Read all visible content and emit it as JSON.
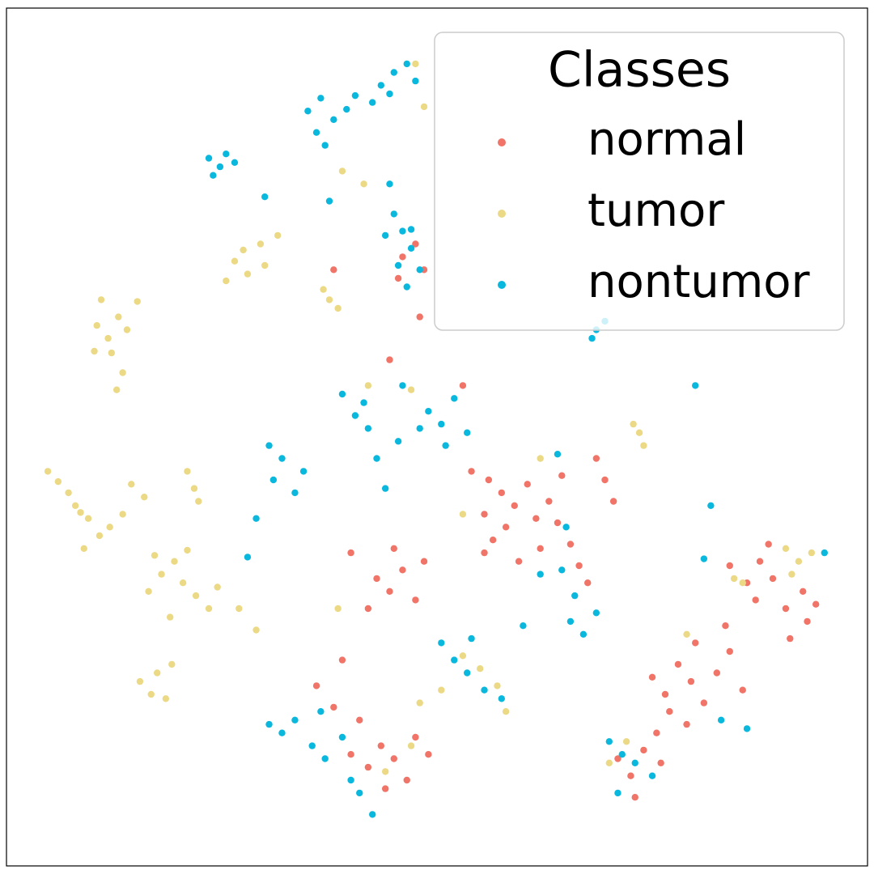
{
  "chart_data": {
    "type": "scatter",
    "xlim": [
      0,
      100
    ],
    "ylim": [
      0,
      100
    ],
    "legend_title": "Classes",
    "legend_position": "upper right",
    "series": [
      {
        "name": "normal",
        "color": "#f07468",
        "x": [
          54,
          56,
          57.5,
          55.5,
          59,
          60.5,
          58,
          61.5,
          63,
          62,
          59.5,
          56.5,
          64,
          65.5,
          66.5,
          67.5,
          69.5,
          70.5,
          68.5,
          64.5,
          43,
          44.5,
          46,
          47.5,
          42,
          40,
          45,
          48.5,
          40,
          42,
          43.5,
          45,
          46.5,
          44,
          47.5,
          41,
          49,
          38,
          36,
          39,
          75,
          76.5,
          78,
          79.5,
          81,
          82.5,
          84,
          77,
          79,
          85.5,
          83.5,
          80,
          84,
          86,
          87.5,
          88.5,
          89,
          87,
          90.5,
          92.5,
          93,
          91,
          94,
          71,
          72.5,
          74,
          75.5,
          73,
          76,
          46,
          47.5,
          48.5,
          45.5,
          38,
          44.5,
          53,
          48,
          55.5
        ],
        "y": [
          46,
          45,
          43.5,
          41,
          42,
          44.5,
          39.5,
          40.5,
          42.5,
          37,
          35.5,
          38,
          40,
          37.5,
          35,
          33,
          45,
          42.5,
          47.5,
          45.5,
          33.5,
          32,
          34.5,
          31,
          30,
          36.5,
          37,
          35.5,
          13,
          11.5,
          14,
          12.5,
          10,
          9,
          15,
          17,
          13,
          18.5,
          21,
          24,
          22,
          20,
          23.5,
          21.5,
          19,
          22.5,
          25,
          18,
          16.5,
          20.5,
          28,
          26,
          35,
          33,
          35.5,
          37.5,
          33.5,
          31,
          30,
          32,
          28.5,
          26.5,
          30.5,
          12.5,
          10.5,
          13.5,
          15.5,
          8,
          12,
          71,
          72.5,
          69.5,
          68.5,
          69.5,
          59,
          56,
          64,
          36.5
        ]
      },
      {
        "name": "tumor",
        "color": "#ecd985",
        "x": [
          10.5,
          11.8,
          13,
          12.2,
          14,
          11,
          13.5,
          12.8,
          15.2,
          10.2,
          8,
          9.5,
          7.2,
          6,
          10.8,
          9,
          12,
          13.5,
          4.8,
          8.6,
          18,
          19.5,
          20.5,
          17.2,
          22,
          21,
          16.5,
          23.5,
          19,
          24.5,
          15.5,
          16.8,
          17.5,
          18.5,
          19.2,
          26.5,
          28,
          27.5,
          29.5,
          31.5,
          25.5,
          30,
          37.5,
          38.5,
          36.8,
          21,
          21.8,
          22.3,
          14.5,
          16,
          73.5,
          74,
          72.8,
          92,
          93.5,
          91.2,
          90.5,
          27,
          29,
          38.5,
          48,
          50.5,
          53,
          57,
          58,
          55,
          44,
          47,
          70,
          72,
          79,
          84.5,
          85.5,
          42,
          47,
          53,
          62,
          47.5,
          48.5,
          39,
          41.5
        ],
        "y": [
          63,
          61.5,
          64,
          59.8,
          62.5,
          66,
          57.5,
          55.5,
          65.8,
          60,
          42,
          40.5,
          43.5,
          44.8,
          38.5,
          37,
          39.5,
          41,
          46,
          41.2,
          34,
          35.5,
          33,
          36.2,
          31.5,
          36.8,
          32,
          30,
          29,
          32.5,
          21.5,
          20,
          22.5,
          19.5,
          23.5,
          70.5,
          69,
          71.8,
          72.5,
          73.5,
          68.2,
          70,
          66,
          65,
          67.2,
          46,
          44,
          42.5,
          44.5,
          43,
          50.5,
          49,
          51.5,
          35.5,
          36.5,
          34,
          37,
          30,
          27.5,
          30,
          19,
          20.5,
          24.5,
          21,
          18,
          23,
          11,
          14,
          12,
          14.5,
          27,
          33.5,
          33,
          56,
          55.5,
          41,
          47.5,
          93.5,
          88.5,
          81,
          79.5
        ]
      },
      {
        "name": "nontumor",
        "color": "#0ab8de",
        "x": [
          23.5,
          24.8,
          25.5,
          24,
          26.5,
          35,
          36.5,
          38,
          36,
          39.5,
          40.5,
          43.5,
          45,
          46.5,
          44.5,
          47.5,
          42.5,
          45,
          46,
          47,
          45.5,
          48,
          46.5,
          44,
          37.5,
          44.5,
          39,
          40.5,
          41.5,
          42,
          45.5,
          43,
          49,
          50.5,
          52,
          51,
          48,
          46,
          53.5,
          44,
          30.5,
          32,
          31,
          33.5,
          29,
          34.5,
          28,
          30.5,
          32,
          33.5,
          35.5,
          37,
          39,
          36.5,
          41,
          40,
          42.5,
          50.5,
          52,
          53.5,
          55.5,
          57.5,
          54,
          65.5,
          67,
          68.5,
          66,
          62,
          64.5,
          70,
          71.5,
          73,
          71,
          75,
          68.5,
          69.5,
          68,
          80,
          81.8,
          81,
          83,
          86,
          95,
          64,
          60,
          65,
          30,
          37,
          47
        ],
        "y": [
          82.5,
          81.5,
          83,
          80.5,
          82,
          88,
          89.5,
          87,
          85.5,
          88.2,
          89.8,
          91,
          92.5,
          93.5,
          90,
          91.5,
          89,
          76,
          74,
          72,
          70,
          69.5,
          67.5,
          73.5,
          77.5,
          79.5,
          55,
          52.5,
          54,
          51,
          49.5,
          47.5,
          53,
          51.5,
          54.5,
          49,
          51,
          56,
          50.5,
          44,
          49,
          47.5,
          45,
          43.5,
          40.5,
          46,
          36,
          16.5,
          15.5,
          17,
          14,
          12.5,
          15,
          18,
          8.5,
          10,
          6,
          26,
          24,
          22.5,
          20.5,
          19.5,
          26.5,
          28.5,
          27,
          29.5,
          31.5,
          34,
          34.5,
          14.5,
          13,
          12,
          8.5,
          10.5,
          62.5,
          63.5,
          61.5,
          56,
          42,
          35.8,
          17,
          16,
          36.5,
          48,
          28,
          39.5,
          78,
          84,
          74.2
        ]
      }
    ]
  }
}
